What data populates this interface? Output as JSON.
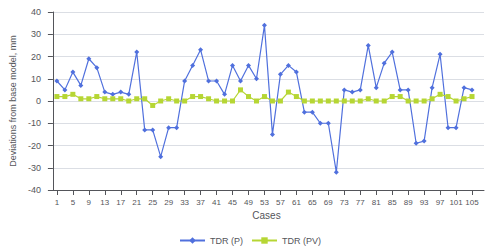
{
  "chart_data": {
    "type": "line",
    "xlabel": "Cases",
    "ylabel": "Deviations from base model, mm",
    "x": [
      1,
      3,
      5,
      7,
      9,
      11,
      13,
      15,
      17,
      19,
      21,
      23,
      25,
      27,
      29,
      31,
      33,
      35,
      37,
      39,
      41,
      43,
      45,
      47,
      49,
      51,
      53,
      55,
      57,
      59,
      61,
      63,
      65,
      67,
      69,
      71,
      73,
      75,
      77,
      79,
      81,
      83,
      85,
      87,
      89,
      91,
      93,
      95,
      97,
      99,
      101,
      103,
      105
    ],
    "series": [
      {
        "name": "TDR (P)",
        "marker": "diamond",
        "values": [
          9,
          5,
          13,
          7,
          19,
          15,
          4,
          3,
          4,
          3,
          22,
          -13,
          -13,
          -25,
          -12,
          -12,
          9,
          16,
          23,
          9,
          9,
          3,
          16,
          9,
          16,
          10,
          34,
          -15,
          12,
          16,
          13,
          -5,
          -5,
          -10,
          -10,
          -32,
          5,
          4,
          5,
          25,
          6,
          17,
          22,
          5,
          5,
          -19,
          -18,
          6,
          21,
          -12,
          -12,
          6,
          5
        ]
      },
      {
        "name": "TDR (PV)",
        "marker": "square",
        "values": [
          2,
          2,
          3,
          1,
          1,
          2,
          1,
          1,
          1,
          0,
          1,
          1,
          -2,
          0,
          1,
          0,
          0,
          2,
          2,
          1,
          0,
          0,
          0,
          5,
          2,
          0,
          2,
          0,
          0,
          4,
          2,
          0,
          0,
          0,
          0,
          0,
          0,
          0,
          0,
          1,
          0,
          0,
          2,
          2,
          0,
          0,
          0,
          1,
          3,
          2,
          0,
          1,
          2
        ]
      }
    ],
    "xlim": [
      -1,
      108
    ],
    "xticks": [
      1,
      5,
      9,
      13,
      17,
      21,
      25,
      29,
      33,
      37,
      41,
      45,
      49,
      53,
      57,
      61,
      65,
      69,
      73,
      77,
      81,
      85,
      89,
      93,
      97,
      101,
      105
    ],
    "ylim": [
      -40,
      40
    ],
    "yticks": [
      -40,
      -30,
      -20,
      -10,
      0,
      10,
      20,
      30,
      40
    ],
    "grid": true,
    "legend": "bottom"
  }
}
